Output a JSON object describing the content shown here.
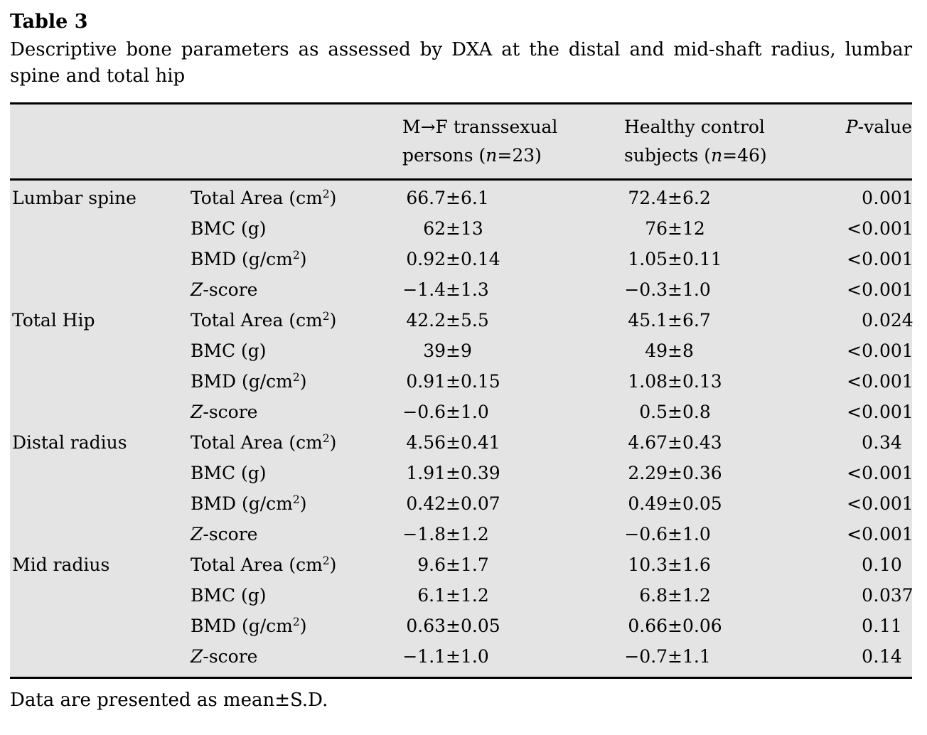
{
  "page": {
    "background": "#ffffff",
    "table_background": "#e4e4e4",
    "rule_color": "#000000"
  },
  "table": {
    "label": "Table 3",
    "caption": "Descriptive bone parameters as assessed by DXA at the distal and mid-shaft radius, lumbar spine and total hip",
    "footnote": "Data are presented as mean±S.D.",
    "header": {
      "group_col": "",
      "param_col": "",
      "mf_col": {
        "line1": "M→F transsexual",
        "line2_html": "persons (<i>n</i>=23)"
      },
      "control_col": {
        "line1": "Healthy control",
        "line2_html": "subjects (<i>n</i>=46)"
      },
      "p_col_html": "<i>P</i>-value"
    },
    "rows": [
      {
        "group": "Lumbar spine",
        "param_html": "Total Area (cm<sup>2</sup>)",
        "mf": "66.7±6.1",
        "control": "72.4±6.2",
        "p": "0.001"
      },
      {
        "group": "",
        "param_html": "BMC (g)",
        "mf": "62±13",
        "control": "76±12",
        "p": "<0.001"
      },
      {
        "group": "",
        "param_html": "BMD (g/cm<sup>2</sup>)",
        "mf": "0.92±0.14",
        "control": "1.05±0.11",
        "p": "<0.001"
      },
      {
        "group": "",
        "param_html": "<i>Z</i>-score",
        "mf": "−1.4±1.3",
        "control": "−0.3±1.0",
        "p": "<0.001"
      },
      {
        "group": "Total Hip",
        "param_html": "Total Area (cm<sup>2</sup>)",
        "mf": "42.2±5.5",
        "control": "45.1±6.7",
        "p": "0.024"
      },
      {
        "group": "",
        "param_html": "BMC (g)",
        "mf": "39±9",
        "control": "49±8",
        "p": "<0.001"
      },
      {
        "group": "",
        "param_html": "BMD (g/cm<sup>2</sup>)",
        "mf": "0.91±0.15",
        "control": "1.08±0.13",
        "p": "<0.001"
      },
      {
        "group": "",
        "param_html": "<i>Z</i>-score",
        "mf": "−0.6±1.0",
        "control": "0.5±0.8",
        "p": "<0.001"
      },
      {
        "group": "Distal radius",
        "param_html": "Total Area (cm<sup>2</sup>)",
        "mf": "4.56±0.41",
        "control": "4.67±0.43",
        "p": "0.34"
      },
      {
        "group": "",
        "param_html": "BMC (g)",
        "mf": "1.91±0.39",
        "control": "2.29±0.36",
        "p": "<0.001"
      },
      {
        "group": "",
        "param_html": "BMD (g/cm<sup>2</sup>)",
        "mf": "0.42±0.07",
        "control": "0.49±0.05",
        "p": "<0.001"
      },
      {
        "group": "",
        "param_html": "<i>Z</i>-score",
        "mf": "−1.8±1.2",
        "control": "−0.6±1.0",
        "p": "<0.001"
      },
      {
        "group": "Mid radius",
        "param_html": "Total Area (cm<sup>2</sup>)",
        "mf": "9.6±1.7",
        "control": "10.3±1.6",
        "p": "0.10"
      },
      {
        "group": "",
        "param_html": "BMC (g)",
        "mf": "6.1±1.2",
        "control": "6.8±1.2",
        "p": "0.037"
      },
      {
        "group": "",
        "param_html": "BMD (g/cm<sup>2</sup>)",
        "mf": "0.63±0.05",
        "control": "0.66±0.06",
        "p": "0.11"
      },
      {
        "group": "",
        "param_html": "<i>Z</i>-score",
        "mf": "−1.1±1.0",
        "control": "−0.7±1.1",
        "p": "0.14"
      }
    ]
  }
}
